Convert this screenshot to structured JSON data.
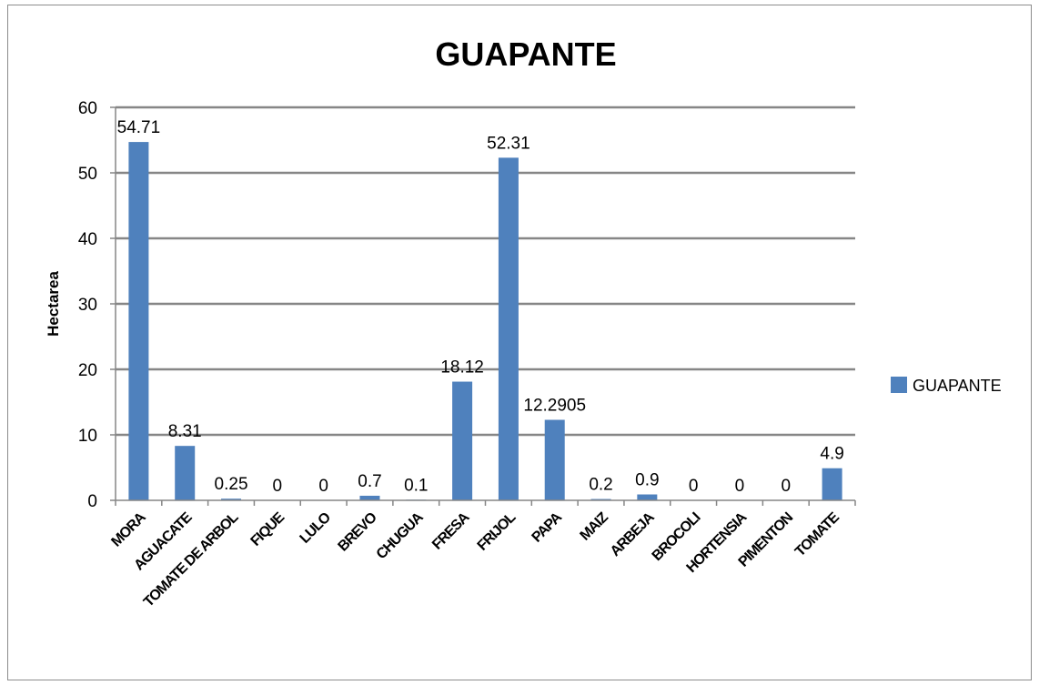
{
  "chart_data": {
    "type": "bar",
    "title": "GUAPANTE",
    "xlabel": "",
    "ylabel": "Hectarea",
    "ylim": [
      0,
      60
    ],
    "yticks": [
      0,
      10,
      20,
      30,
      40,
      50,
      60
    ],
    "grid": true,
    "legend_position": "right",
    "categories": [
      "MORA",
      "AGUACATE",
      "TOMATE DE ARBOL",
      "FIQUE",
      "LULO",
      "BREVO",
      "CHUGUA",
      "FRESA",
      "FRIJOL",
      "PAPA",
      "MAIZ",
      "ARBEJA",
      "BROCOLI",
      "HORTENSIA",
      "PIMENTON",
      "TOMATE"
    ],
    "series": [
      {
        "name": "GUAPANTE",
        "color": "#4f81bd",
        "values": [
          54.71,
          8.31,
          0.25,
          0,
          0,
          0.7,
          0.1,
          18.12,
          52.31,
          12.2905,
          0.2,
          0.9,
          0,
          0,
          0,
          4.9
        ],
        "labels": [
          "54.71",
          "8.31",
          "0.25",
          "0",
          "0",
          "0.7",
          "0.1",
          "18.12",
          "52.31",
          "12.2905",
          "0.2",
          "0.9",
          "0",
          "0",
          "0",
          "4.9"
        ]
      }
    ],
    "gridline_color": "#868686"
  }
}
